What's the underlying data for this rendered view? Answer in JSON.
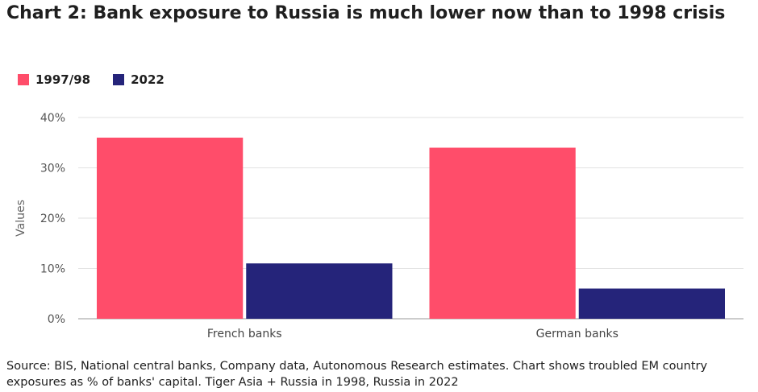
{
  "title": "Chart 2: Bank exposure to Russia is much lower now than to 1998 crisis",
  "source": "Source: BIS, National central banks, Company data, Autonomous Research estimates. Chart shows troubled EM country exposures as % of banks' capital. Tiger Asia + Russia in 1998, Russia in 2022",
  "chart_data": {
    "type": "bar",
    "categories": [
      "French banks",
      "German banks"
    ],
    "series": [
      {
        "name": "1997/98",
        "color": "#ff4d6a",
        "values": [
          36,
          34
        ]
      },
      {
        "name": "2022",
        "color": "#25247a",
        "values": [
          11,
          6
        ]
      }
    ],
    "ylabel": "Values",
    "ylim": [
      0,
      40
    ],
    "yticks": [
      0,
      10,
      20,
      30,
      40
    ],
    "ytick_labels": [
      "0%",
      "10%",
      "20%",
      "30%",
      "40%"
    ],
    "grid": true,
    "legend": "top-left"
  }
}
